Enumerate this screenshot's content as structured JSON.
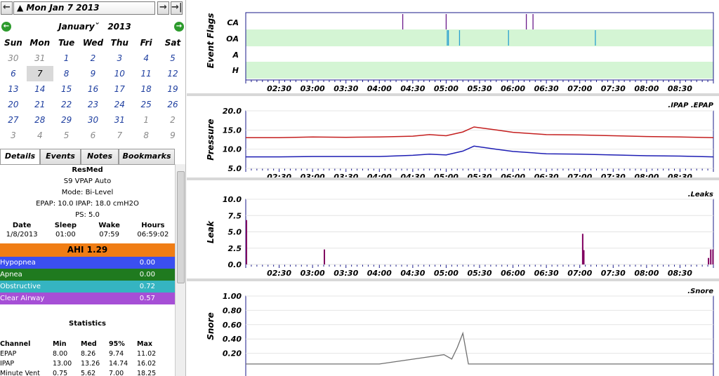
{
  "date_nav": {
    "current_date": "Mon Jan 7 2013",
    "back_icon": "arrow-left",
    "forward_icon": "arrow-right",
    "latest_icon": "arrow-right-bar"
  },
  "calendar": {
    "month": "January",
    "year": "2013",
    "weekdays": [
      "Sun",
      "Mon",
      "Tue",
      "Wed",
      "Thu",
      "Fri",
      "Sat"
    ],
    "weeks": [
      [
        "30",
        "31",
        "1",
        "2",
        "3",
        "4",
        "5"
      ],
      [
        "6",
        "7",
        "8",
        "9",
        "10",
        "11",
        "12"
      ],
      [
        "13",
        "14",
        "15",
        "16",
        "17",
        "18",
        "19"
      ],
      [
        "20",
        "21",
        "22",
        "23",
        "24",
        "25",
        "26"
      ],
      [
        "27",
        "28",
        "29",
        "30",
        "31",
        "1",
        "2"
      ],
      [
        "3",
        "4",
        "5",
        "6",
        "7",
        "8",
        "9"
      ]
    ],
    "selected_day": "7"
  },
  "tabs": [
    "Details",
    "Events",
    "Notes",
    "Bookmarks"
  ],
  "details": {
    "machine": "ResMed",
    "model": "S9 VPAP Auto",
    "mode": "Mode: Bi-Level",
    "pressures": "EPAP: 10.0 IPAP: 18.0 cmH2O",
    "ps": "PS: 5.0",
    "session_headers": [
      "Date",
      "Sleep",
      "Wake",
      "Hours"
    ],
    "session_values": [
      "1/8/2013",
      "01:00",
      "07:59",
      "06:59:02"
    ],
    "ahi": "AHI 1.29",
    "events": [
      {
        "label": "Hypopnea",
        "value": "0.00",
        "color": "#3b4ff0"
      },
      {
        "label": "Apnea",
        "value": "0.00",
        "color": "#1f7a1f"
      },
      {
        "label": "Obstructive",
        "value": "0.72",
        "color": "#35b4c1"
      },
      {
        "label": "Clear Airway",
        "value": "0.57",
        "color": "#a64fd6"
      }
    ],
    "statistics_title": "Statistics",
    "stats_headers": [
      "Channel",
      "Min",
      "Med",
      "95%",
      "Max"
    ],
    "stats_rows": [
      [
        "EPAP",
        "8.00",
        "8.26",
        "9.74",
        "11.02"
      ],
      [
        "IPAP",
        "13.00",
        "13.26",
        "14.74",
        "16.02"
      ],
      [
        "Minute Vent",
        "0.75",
        "5.62",
        "7.00",
        "18.25"
      ]
    ]
  },
  "graphs": {
    "time_ticks": [
      "02:30",
      "03:00",
      "03:30",
      "04:00",
      "04:30",
      "05:00",
      "05:30",
      "06:00",
      "06:30",
      "07:00",
      "07:30",
      "08:00",
      "08:30"
    ],
    "event_flags": {
      "ylabel": "Event Flags",
      "rows": [
        "CA",
        "OA",
        "A",
        "H"
      ]
    },
    "pressure": {
      "ylabel": "Pressure",
      "legend": ".IPAP .EPAP",
      "ticks": [
        "20.0",
        "15.0",
        "10.0",
        "5.0"
      ],
      "ipap_color": "#c41e1e",
      "epap_color": "#1e1eb4"
    },
    "leak": {
      "ylabel": "Leak",
      "legend": ".Leaks",
      "ticks": [
        "10.0",
        "7.5",
        "5.0",
        "2.5",
        "0.0"
      ],
      "color": "#800060"
    },
    "snore": {
      "ylabel": "Snore",
      "legend": ".Snore",
      "ticks": [
        "1.00",
        "0.80",
        "0.60",
        "0.40",
        "0.20"
      ],
      "color": "#707070"
    }
  },
  "chart_data": [
    {
      "type": "line",
      "title": "",
      "ylabel": "Pressure",
      "ylim": [
        5,
        20
      ],
      "x": [
        "02:00",
        "02:30",
        "03:00",
        "03:30",
        "04:00",
        "04:30",
        "04:45",
        "05:00",
        "05:15",
        "05:25",
        "05:45",
        "06:00",
        "06:30",
        "07:00",
        "07:30",
        "08:00",
        "08:30",
        "09:00"
      ],
      "series": [
        {
          "name": "IPAP",
          "values": [
            13.0,
            13.0,
            13.2,
            13.1,
            13.2,
            13.4,
            13.8,
            13.5,
            14.5,
            15.8,
            15.0,
            14.4,
            13.8,
            13.7,
            13.5,
            13.3,
            13.2,
            13.0
          ]
        },
        {
          "name": "EPAP",
          "values": [
            8.0,
            8.0,
            8.1,
            8.1,
            8.1,
            8.4,
            8.7,
            8.5,
            9.5,
            10.8,
            10.0,
            9.4,
            8.8,
            8.7,
            8.5,
            8.3,
            8.2,
            8.0
          ]
        }
      ]
    },
    {
      "type": "bar",
      "title": "",
      "ylabel": "Leak",
      "ylim": [
        0,
        10
      ],
      "series": [
        {
          "name": "Leaks",
          "x": [
            "02:00",
            "03:10",
            "07:02",
            "07:03",
            "08:55",
            "08:57",
            "08:59"
          ],
          "values": [
            6.8,
            2.3,
            4.7,
            2.2,
            1.0,
            2.3,
            2.3
          ]
        }
      ]
    },
    {
      "type": "line",
      "title": "",
      "ylabel": "Snore",
      "ylim": [
        0,
        1
      ],
      "x": [
        "02:00",
        "03:00",
        "04:00",
        "04:58",
        "05:05",
        "05:10",
        "05:15",
        "05:20",
        "06:00",
        "07:00",
        "08:00",
        "09:00"
      ],
      "series": [
        {
          "name": "Snore",
          "values": [
            0.05,
            0.05,
            0.05,
            0.18,
            0.12,
            0.28,
            0.48,
            0.05,
            0.05,
            0.05,
            0.05,
            0.05
          ]
        }
      ]
    },
    {
      "type": "scatter",
      "title": "",
      "ylabel": "Event Flags",
      "series": [
        {
          "name": "CA",
          "x": [
            "04:21",
            "05:00",
            "06:12",
            "06:18"
          ]
        },
        {
          "name": "OA",
          "x": [
            "05:01",
            "05:02",
            "05:12",
            "05:56",
            "07:14"
          ]
        }
      ]
    }
  ]
}
